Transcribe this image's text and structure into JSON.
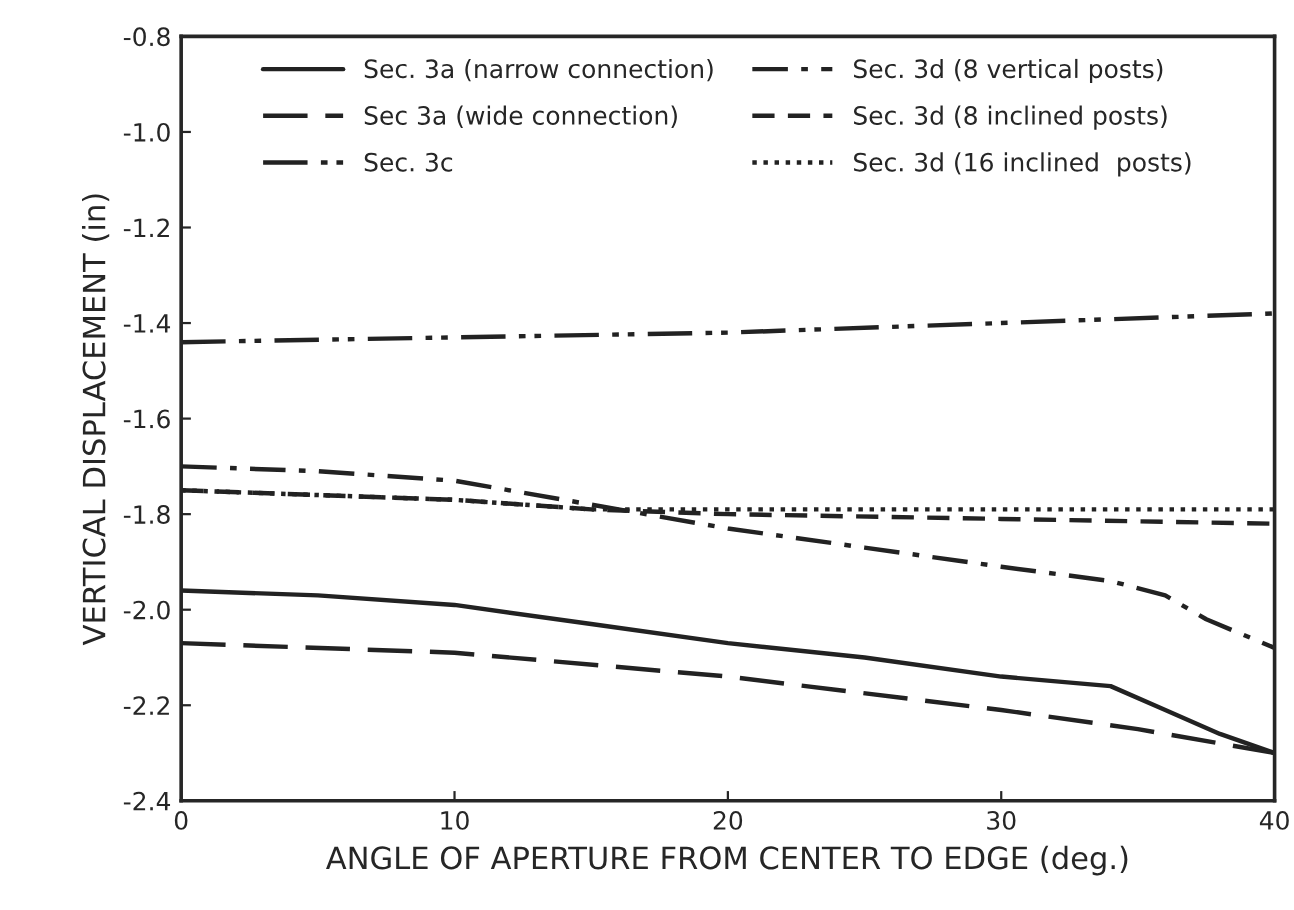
{
  "chart_data": {
    "type": "line",
    "xlabel": "ANGLE OF APERTURE FROM CENTER TO EDGE (deg.)",
    "ylabel": "VERTICAL DISPLACEMENT (in)",
    "xlim": [
      0,
      40
    ],
    "xticks": [
      0,
      10,
      20,
      30,
      40
    ],
    "ylim": [
      -2.4,
      -0.8
    ],
    "yticks": [
      -2.4,
      -2.2,
      {
        "value": -2,
        "label": "-2.0"
      },
      -1.8,
      -1.6,
      -1.4,
      -1.2,
      {
        "value": -1,
        "label": "-1.0"
      },
      -0.8
    ],
    "grid": false,
    "legend": "top",
    "marker": "none",
    "series": [
      {
        "name": "Sec. 3a (narrow connection)",
        "color": "#222222",
        "line_style": "solid",
        "x": [
          0,
          5,
          10,
          15,
          20,
          25,
          30,
          34,
          36,
          38,
          40
        ],
        "values": [
          -1.96,
          -1.97,
          -1.99,
          -2.03,
          -2.07,
          -2.1,
          -2.14,
          -2.16,
          -2.21,
          -2.26,
          -2.3
        ]
      },
      {
        "name": "Sec 3a (wide connection)",
        "color": "#222222",
        "line_style": "longdash",
        "x": [
          0,
          10,
          20,
          30,
          35,
          40
        ],
        "values": [
          -2.07,
          -2.09,
          -2.14,
          -2.21,
          -2.25,
          -2.3
        ]
      },
      {
        "name": "Sec. 3c",
        "color": "#222222",
        "line_style": "dashdotdot",
        "x": [
          0,
          10,
          20,
          30,
          40
        ],
        "values": [
          -1.44,
          -1.43,
          -1.42,
          -1.4,
          -1.38
        ]
      },
      {
        "name": "Sec. 3d (8 vertical posts)",
        "color": "#222222",
        "line_style": "dashdot",
        "x": [
          0,
          5,
          10,
          15,
          20,
          25,
          30,
          34,
          36,
          37.5,
          40
        ],
        "values": [
          -1.7,
          -1.71,
          -1.73,
          -1.78,
          -1.83,
          -1.87,
          -1.91,
          -1.94,
          -1.97,
          -2.02,
          -2.08
        ]
      },
      {
        "name": "Sec. 3d (8 inclined posts)",
        "color": "#222222",
        "line_style": "dashed",
        "x": [
          0,
          10,
          15,
          20,
          30,
          40
        ],
        "values": [
          -1.75,
          -1.77,
          -1.79,
          -1.8,
          -1.81,
          -1.82
        ]
      },
      {
        "name": "Sec. 3d (16 inclined  posts)",
        "color": "#222222",
        "line_style": "dotted",
        "x": [
          0,
          10,
          15,
          20,
          30,
          40
        ],
        "values": [
          -1.75,
          -1.77,
          -1.79,
          -1.79,
          -1.79,
          -1.79
        ]
      }
    ]
  }
}
